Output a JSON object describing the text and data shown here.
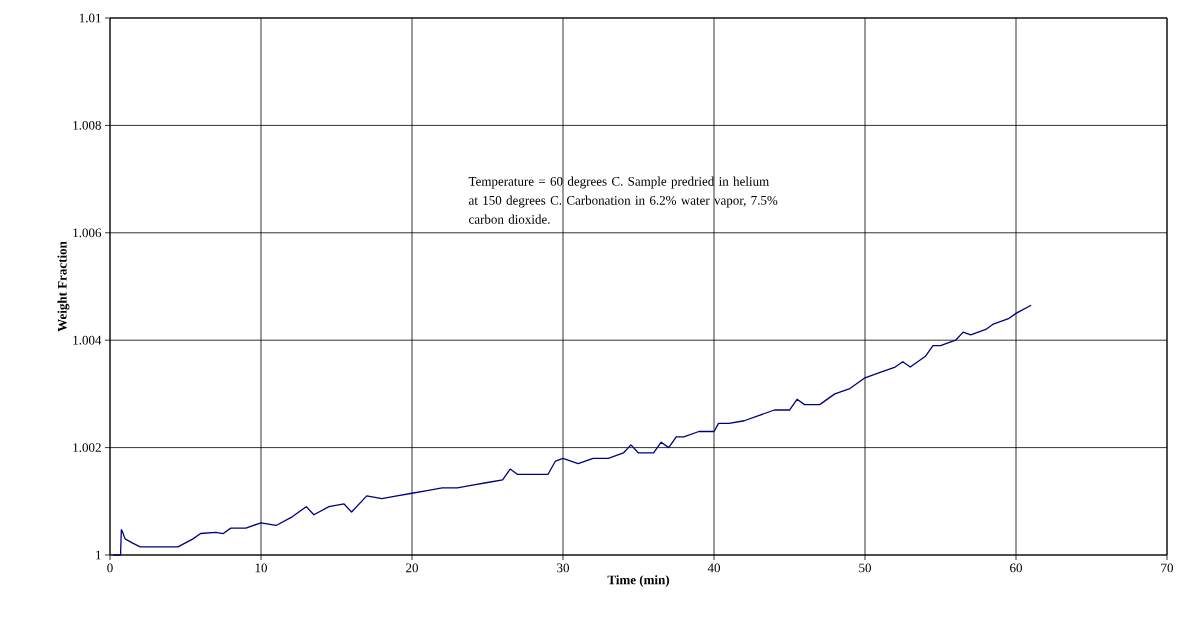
{
  "chart_data": {
    "type": "line",
    "xlabel": "Time  (min)",
    "ylabel": "Weight Fraction",
    "annotations": [
      "Temperature = 60 degrees C.  Sample predried in helium at 150 degrees C.   Carbonation in 6.2% water vapor, 7.5% carbon dioxide."
    ],
    "x": [
      0.2,
      0.7,
      0.75,
      0.8,
      1.0,
      1.5,
      2,
      3,
      4.5,
      5.5,
      6,
      7,
      7.5,
      8,
      9,
      10,
      11,
      12,
      13,
      13.5,
      14.5,
      15.5,
      16,
      17,
      18,
      19,
      20,
      21,
      22,
      23,
      24,
      25,
      26,
      26.5,
      27,
      28,
      29,
      29.5,
      30,
      31,
      32,
      33,
      34,
      34.5,
      35,
      36,
      36.5,
      37,
      37.5,
      38,
      39,
      40,
      40.3,
      41,
      42,
      43,
      44,
      45,
      45.5,
      46,
      47,
      48,
      49,
      50,
      51,
      52,
      52.5,
      53,
      54,
      54.5,
      55,
      56,
      56.5,
      57,
      58,
      58.5,
      59.5,
      60,
      61
    ],
    "series": [
      {
        "color": "#000080",
        "values": [
          1.0,
          1.0,
          1.00047,
          1.00045,
          1.0003,
          1.00022,
          1.00015,
          1.00015,
          1.00015,
          1.0003,
          1.0004,
          1.00042,
          1.0004,
          1.0005,
          1.0005,
          1.0006,
          1.00055,
          1.0007,
          1.0009,
          1.00075,
          1.0009,
          1.00095,
          1.0008,
          1.0011,
          1.00105,
          1.0011,
          1.00115,
          1.0012,
          1.00125,
          1.00125,
          1.0013,
          1.00135,
          1.0014,
          1.0016,
          1.0015,
          1.0015,
          1.0015,
          1.00175,
          1.0018,
          1.0017,
          1.0018,
          1.0018,
          1.0019,
          1.00205,
          1.0019,
          1.0019,
          1.0021,
          1.002,
          1.0022,
          1.0022,
          1.0023,
          1.0023,
          1.00245,
          1.00245,
          1.0025,
          1.0026,
          1.0027,
          1.0027,
          1.0029,
          1.0028,
          1.0028,
          1.003,
          1.0031,
          1.0033,
          1.0034,
          1.0035,
          1.0036,
          1.0035,
          1.0037,
          1.0039,
          1.0039,
          1.004,
          1.00415,
          1.0041,
          1.0042,
          1.0043,
          1.0044,
          1.0045,
          1.00465
        ]
      }
    ],
    "xlim": [
      0,
      70
    ],
    "xticks": [
      0,
      10,
      20,
      30,
      40,
      50,
      60,
      70
    ],
    "ylim": [
      1,
      1.01
    ],
    "yticks": [
      1,
      1.002,
      1.004,
      1.006,
      1.008,
      1.01
    ],
    "grid": true,
    "marker": "none",
    "line_style": "solid"
  }
}
